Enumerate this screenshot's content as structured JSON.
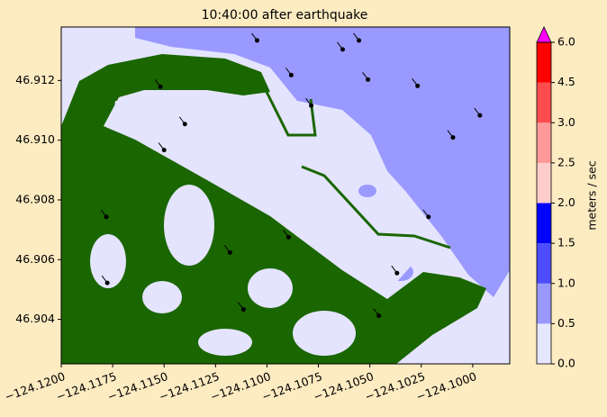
{
  "chart_data": {
    "type": "scatter",
    "title": "10:40:00 after earthquake",
    "xlim": [
      -124.12,
      -124.0982
    ],
    "ylim": [
      46.90251,
      46.91379
    ],
    "xticks": [
      {
        "value": -124.12,
        "label": "−124.1200"
      },
      {
        "value": -124.1175,
        "label": "−124.1175"
      },
      {
        "value": -124.115,
        "label": "−124.1150"
      },
      {
        "value": -124.1125,
        "label": "−124.1125"
      },
      {
        "value": -124.11,
        "label": "−124.1100"
      },
      {
        "value": -124.1075,
        "label": "−124.1075"
      },
      {
        "value": -124.105,
        "label": "−124.1050"
      },
      {
        "value": -124.1025,
        "label": "−124.1025"
      },
      {
        "value": -124.1,
        "label": "−124.1000"
      }
    ],
    "yticks": [
      {
        "value": 46.904,
        "label": "46.904"
      },
      {
        "value": 46.906,
        "label": "46.906"
      },
      {
        "value": 46.908,
        "label": "46.908"
      },
      {
        "value": 46.91,
        "label": "46.910"
      },
      {
        "value": 46.912,
        "label": "46.912"
      }
    ],
    "series": [
      {
        "color": "#000000",
        "x": [
          -124.11048,
          -124.10882,
          -124.10632,
          -124.10553,
          -124.10509,
          -124.10268,
          -124.10096,
          -124.09965,
          -124.10785,
          -124.11518,
          -124.11399,
          -124.115,
          -124.10895,
          -124.11781,
          -124.11776,
          -124.11114,
          -124.10368,
          -124.10456,
          -124.10215,
          -124.1118
        ],
        "values": [
          46.91334,
          46.91218,
          46.91304,
          46.91334,
          46.91203,
          46.91182,
          46.91009,
          46.91083,
          46.91116,
          46.91179,
          46.91054,
          46.90967,
          46.90675,
          46.90743,
          46.90522,
          46.90433,
          46.90555,
          46.90412,
          46.90743,
          46.90624
        ]
      }
    ],
    "colorbar": {
      "label": "meters / sec",
      "ticks": [
        {
          "value": 0,
          "label": "0.0"
        },
        {
          "value": 0.5,
          "label": "0.5"
        },
        {
          "value": 1,
          "label": "1.0"
        },
        {
          "value": 1.5,
          "label": "1.5"
        },
        {
          "value": 2,
          "label": "2.0"
        },
        {
          "value": 2.5,
          "label": "2.5"
        },
        {
          "value": 3,
          "label": "3.0"
        },
        {
          "value": 4.5,
          "label": "4.5"
        },
        {
          "value": 6,
          "label": "6.0"
        }
      ],
      "colors": [
        "#e6e6ff",
        "#9999ff",
        "#4d4dff",
        "#0000ff",
        "#ffcccc",
        "#ff9999",
        "#ff4d4d",
        "#ff0000"
      ],
      "over_color": "#ff00ff"
    }
  }
}
